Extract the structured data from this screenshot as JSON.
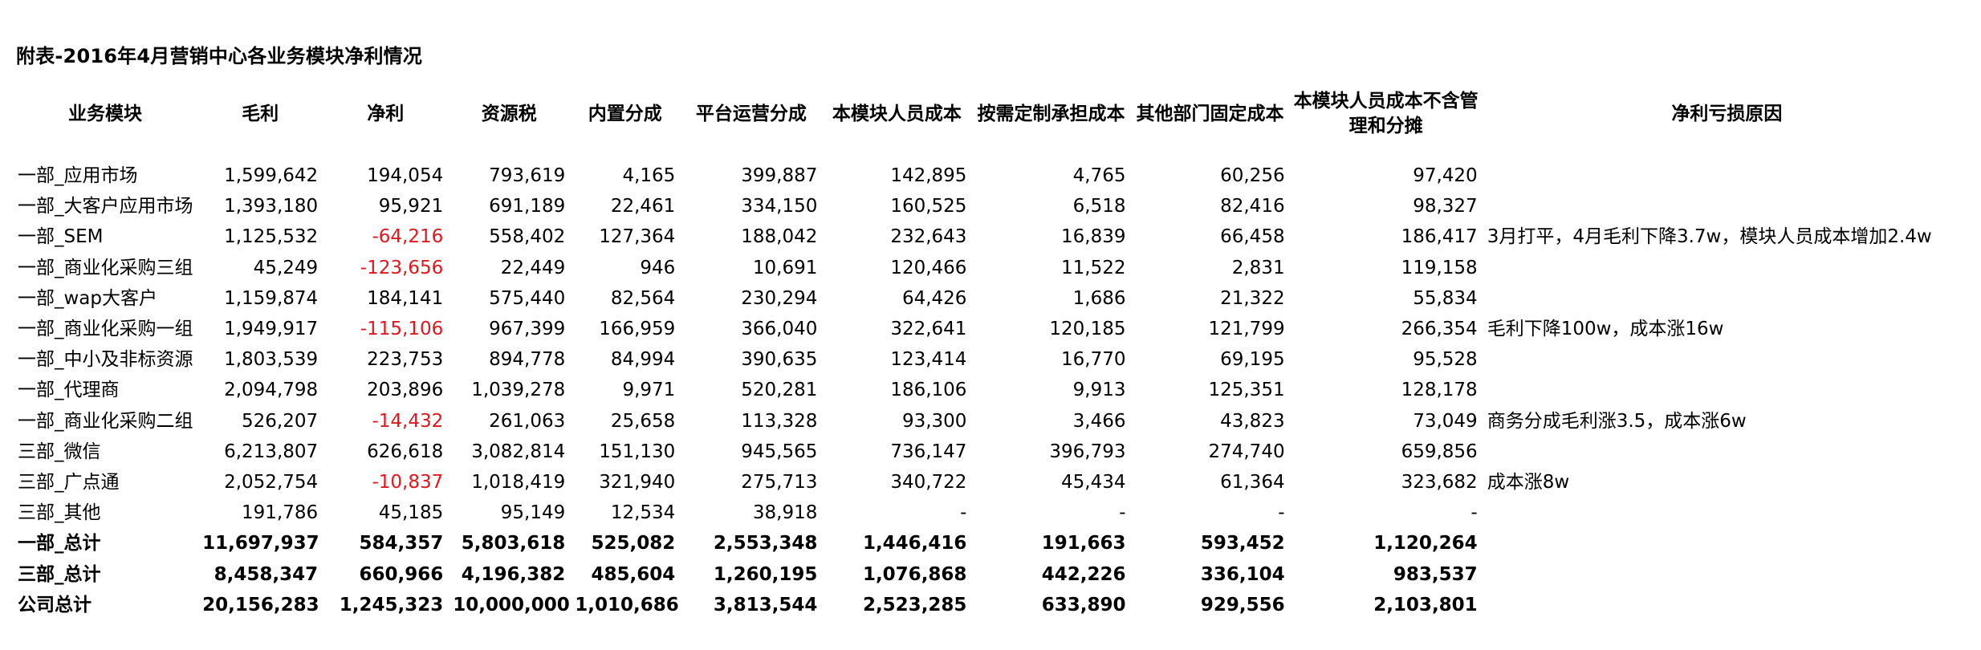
{
  "title": "附表-2016年4月营销中心各业务模块净利情况",
  "columns": [
    "业务模块",
    "毛利",
    "净利",
    "资源税",
    "内置分成",
    "平台运营分成",
    "本模块人员成本",
    "按需定制承担成本",
    "其他部门固定成本",
    "本模块人员成本不含管理和分摊",
    "净利亏损原因"
  ],
  "rows": [
    {
      "name": "一部_应用市场",
      "gross": "1,599,642",
      "net": "194,054",
      "tax": "793,619",
      "builtin": "4,165",
      "platform": "399,887",
      "staff": "142,895",
      "custom": "4,765",
      "fixed": "60,256",
      "staff_excl": "97,420",
      "reason": ""
    },
    {
      "name": "一部_大客户应用市场",
      "gross": "1,393,180",
      "net": "95,921",
      "tax": "691,189",
      "builtin": "22,461",
      "platform": "334,150",
      "staff": "160,525",
      "custom": "6,518",
      "fixed": "82,416",
      "staff_excl": "98,327",
      "reason": ""
    },
    {
      "name": "一部_SEM",
      "gross": "1,125,532",
      "net": "-64,216",
      "tax": "558,402",
      "builtin": "127,364",
      "platform": "188,042",
      "staff": "232,643",
      "custom": "16,839",
      "fixed": "66,458",
      "staff_excl": "186,417",
      "reason": "3月打平，4月毛利下降3.7w，模块人员成本增加2.4w"
    },
    {
      "name": "一部_商业化采购三组",
      "gross": "45,249",
      "net": "-123,656",
      "tax": "22,449",
      "builtin": "946",
      "platform": "10,691",
      "staff": "120,466",
      "custom": "11,522",
      "fixed": "2,831",
      "staff_excl": "119,158",
      "reason": ""
    },
    {
      "name": "一部_wap大客户",
      "gross": "1,159,874",
      "net": "184,141",
      "tax": "575,440",
      "builtin": "82,564",
      "platform": "230,294",
      "staff": "64,426",
      "custom": "1,686",
      "fixed": "21,322",
      "staff_excl": "55,834",
      "reason": ""
    },
    {
      "name": "一部_商业化采购一组",
      "gross": "1,949,917",
      "net": "-115,106",
      "tax": "967,399",
      "builtin": "166,959",
      "platform": "366,040",
      "staff": "322,641",
      "custom": "120,185",
      "fixed": "121,799",
      "staff_excl": "266,354",
      "reason": "毛利下降100w，成本涨16w"
    },
    {
      "name": "一部_中小及非标资源",
      "gross": "1,803,539",
      "net": "223,753",
      "tax": "894,778",
      "builtin": "84,994",
      "platform": "390,635",
      "staff": "123,414",
      "custom": "16,770",
      "fixed": "69,195",
      "staff_excl": "95,528",
      "reason": ""
    },
    {
      "name": "一部_代理商",
      "gross": "2,094,798",
      "net": "203,896",
      "tax": "1,039,278",
      "builtin": "9,971",
      "platform": "520,281",
      "staff": "186,106",
      "custom": "9,913",
      "fixed": "125,351",
      "staff_excl": "128,178",
      "reason": ""
    },
    {
      "name": "一部_商业化采购二组",
      "gross": "526,207",
      "net": "-14,432",
      "tax": "261,063",
      "builtin": "25,658",
      "platform": "113,328",
      "staff": "93,300",
      "custom": "3,466",
      "fixed": "43,823",
      "staff_excl": "73,049",
      "reason": "商务分成毛利涨3.5，成本涨6w"
    },
    {
      "name": "三部_微信",
      "gross": "6,213,807",
      "net": "626,618",
      "tax": "3,082,814",
      "builtin": "151,130",
      "platform": "945,565",
      "staff": "736,147",
      "custom": "396,793",
      "fixed": "274,740",
      "staff_excl": "659,856",
      "reason": ""
    },
    {
      "name": "三部_广点通",
      "gross": "2,052,754",
      "net": "-10,837",
      "tax": "1,018,419",
      "builtin": "321,940",
      "platform": "275,713",
      "staff": "340,722",
      "custom": "45,434",
      "fixed": "61,364",
      "staff_excl": "323,682",
      "reason": "成本涨8w"
    },
    {
      "name": "三部_其他",
      "gross": "191,786",
      "net": "45,185",
      "tax": "95,149",
      "builtin": "12,534",
      "platform": "38,918",
      "staff": "-",
      "custom": "-",
      "fixed": "-",
      "staff_excl": "-",
      "reason": ""
    },
    {
      "name": "一部_总计",
      "gross": "11,697,937",
      "net": "584,357",
      "tax": "5,803,618",
      "builtin": "525,082",
      "platform": "2,553,348",
      "staff": "1,446,416",
      "custom": "191,663",
      "fixed": "593,452",
      "staff_excl": "1,120,264",
      "reason": "",
      "total": true
    },
    {
      "name": "三部_总计",
      "gross": "8,458,347",
      "net": "660,966",
      "tax": "4,196,382",
      "builtin": "485,604",
      "platform": "1,260,195",
      "staff": "1,076,868",
      "custom": "442,226",
      "fixed": "336,104",
      "staff_excl": "983,537",
      "reason": "",
      "total": true
    },
    {
      "name": "公司总计",
      "gross": "20,156,283",
      "net": "1,245,323",
      "tax": "10,000,000",
      "builtin": "1,010,686",
      "platform": "3,813,544",
      "staff": "2,523,285",
      "custom": "633,890",
      "fixed": "929,556",
      "staff_excl": "2,103,801",
      "reason": "",
      "total": true
    }
  ],
  "colors": {
    "negative": "#e0171e",
    "text": "#000000",
    "background": "#ffffff"
  }
}
